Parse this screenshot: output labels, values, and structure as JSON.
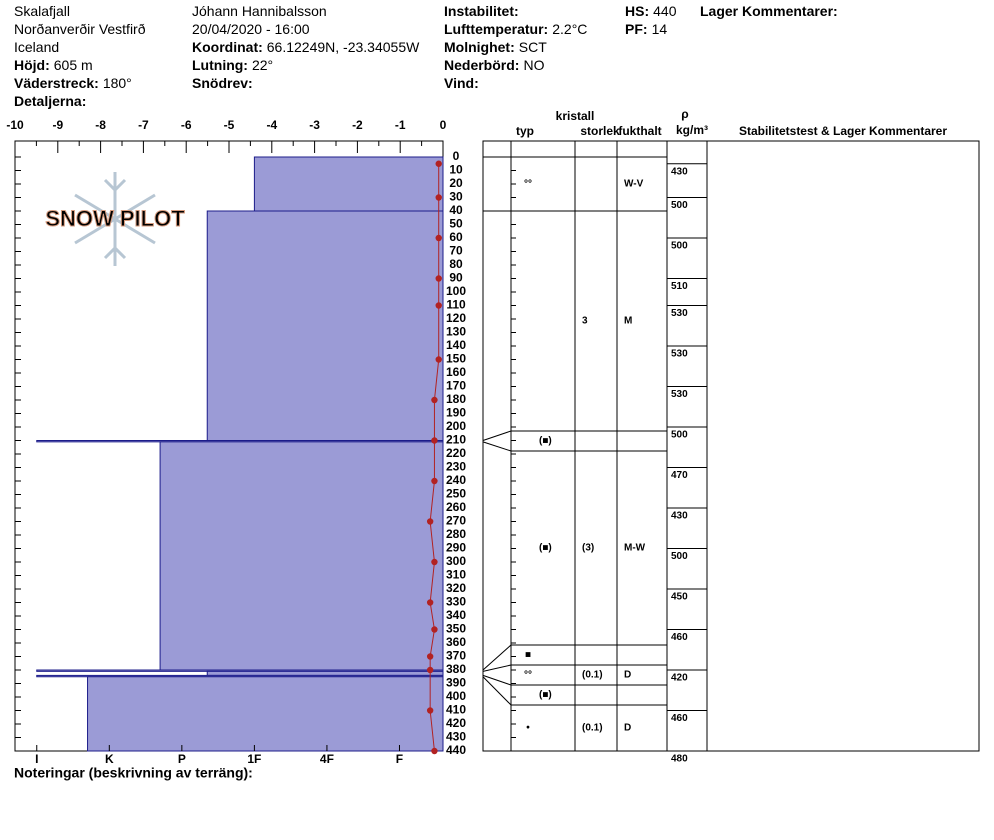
{
  "header": {
    "columns": [
      [
        {
          "text": "Skalafjall"
        },
        {
          "text": "Norðanverðir Vestfirð"
        },
        {
          "text": "Iceland"
        },
        {
          "label": "Höjd:",
          "text": "605 m"
        },
        {
          "label": "Väderstreck:",
          "text": "180°"
        },
        {
          "label": "Detaljerna:"
        }
      ],
      [
        {
          "text": "Jóhann Hannibalsson"
        },
        {
          "text": "20/04/2020 - 16:00"
        },
        {
          "label": "Koordinat:",
          "text": "66.12249N, -23.34055W"
        },
        {
          "label": "Lutning:",
          "text": "22°"
        },
        {
          "label": "Snödrev:"
        }
      ],
      [
        {
          "label": "Instabilitet:"
        },
        {
          "label": "Lufttemperatur:",
          "text": "2.2°C"
        },
        {
          "label": "Molnighet:",
          "text": "SCT"
        },
        {
          "label": "Nederbörd:",
          "text": "NO"
        },
        {
          "label": "Vind:"
        }
      ],
      [
        {
          "label": "HS:",
          "text": "440"
        },
        {
          "label": "PF:",
          "text": "14"
        }
      ],
      [
        {
          "label": "Lager Kommentarer:"
        }
      ]
    ]
  },
  "chart_data": {
    "type": "snow-profile",
    "logo": "SNOW PILOT",
    "note": "Noteringar (beskrivning av terräng):",
    "xlim": [
      -10,
      0
    ],
    "xticks": [
      -10,
      -9,
      -8,
      -7,
      -6,
      -5,
      -4,
      -3,
      -2,
      -1,
      0
    ],
    "hardness_lim": [
      0.4,
      6.3
    ],
    "hardness_ticks": [
      {
        "value": 6,
        "label": "I"
      },
      {
        "value": 5,
        "label": "K"
      },
      {
        "value": 4,
        "label": "P"
      },
      {
        "value": 3,
        "label": "1F"
      },
      {
        "value": 2,
        "label": "4F"
      },
      {
        "value": 1,
        "label": "F"
      }
    ],
    "ylim": [
      0,
      440
    ],
    "yticks": [
      0,
      10,
      20,
      30,
      40,
      50,
      60,
      70,
      80,
      90,
      100,
      110,
      120,
      130,
      140,
      150,
      160,
      170,
      180,
      190,
      200,
      210,
      220,
      230,
      240,
      250,
      260,
      270,
      280,
      290,
      300,
      310,
      320,
      330,
      340,
      350,
      360,
      370,
      380,
      390,
      400,
      410,
      420,
      430,
      440
    ],
    "column_headers": {
      "crystal": "kristall",
      "type": "typ",
      "size": "storlek",
      "moisture": "fukthalt",
      "rho": "ρ",
      "density_unit": "kg/m³",
      "comments": "Stabilitetstest & Lager Kommentarer"
    },
    "layers": {
      "top": [
        0,
        40,
        210,
        211,
        380,
        381,
        384,
        385
      ],
      "bottom": [
        40,
        210,
        211,
        380,
        381,
        384,
        385,
        440
      ],
      "hardness": [
        3,
        3.65,
        6,
        4.3,
        6,
        3.65,
        6,
        5.3
      ],
      "grain": [
        "°°",
        null,
        "(■)",
        "(■)",
        "■",
        "°°",
        "(■)",
        "•"
      ],
      "size": [
        null,
        "3",
        null,
        "(3)",
        null,
        "(0.1)",
        null,
        "(0.1)"
      ],
      "moisture": [
        "W-V",
        "M",
        null,
        "M-W",
        null,
        "D",
        null,
        "D"
      ]
    },
    "temperature": {
      "depth": [
        5,
        30,
        60,
        90,
        110,
        150,
        180,
        210,
        240,
        270,
        300,
        330,
        350,
        370,
        380,
        410,
        440
      ],
      "values": [
        -0.1,
        -0.1,
        -0.1,
        -0.1,
        -0.1,
        -0.1,
        -0.2,
        -0.2,
        -0.2,
        -0.3,
        -0.2,
        -0.3,
        -0.2,
        -0.3,
        -0.3,
        -0.3,
        -0.2
      ]
    },
    "density": {
      "depth": [
        5,
        30,
        60,
        90,
        110,
        140,
        170,
        200,
        230,
        260,
        290,
        320,
        350,
        380,
        410,
        440
      ],
      "values": [
        430,
        500,
        500,
        510,
        530,
        530,
        530,
        500,
        470,
        430,
        500,
        450,
        460,
        420,
        460,
        480
      ]
    },
    "colors": {
      "layer": "#9b9bd6",
      "outline": "#1c1c8a",
      "temperature": "#b22222"
    }
  }
}
